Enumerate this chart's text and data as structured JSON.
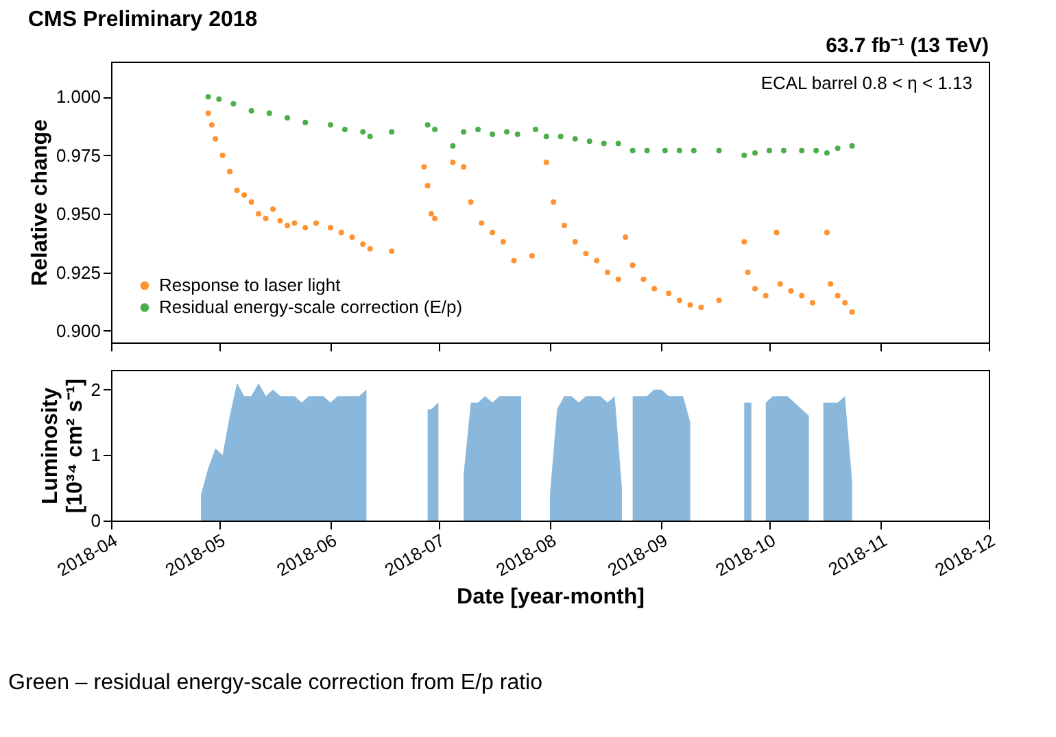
{
  "chart_data": [
    {
      "type": "scatter",
      "title": "CMS Preliminary 2018",
      "ylabel": "Relative change",
      "annotations": [
        "63.7 fb⁻¹ (13 TeV)",
        "ECAL barrel 0.8 < η < 1.13"
      ],
      "xlim": [
        "2018-04",
        "2018-12"
      ],
      "xticks": [
        "2018-04",
        "2018-05",
        "2018-06",
        "2018-07",
        "2018-08",
        "2018-09",
        "2018-10",
        "2018-11",
        "2018-12"
      ],
      "ylim": [
        0.895,
        1.015
      ],
      "yticks": [
        {
          "value": 0.9,
          "label": "0.900"
        },
        {
          "value": 0.925,
          "label": "0.925"
        },
        {
          "value": 0.95,
          "label": "0.950"
        },
        {
          "value": 0.975,
          "label": "0.975"
        },
        {
          "value": 1.0,
          "label": "1.000"
        }
      ],
      "tick_labels": "y",
      "marker": "circle",
      "grid": false,
      "legend": "bottom left",
      "series": [
        {
          "name": "Response to laser light",
          "color": "#ff7f0e",
          "x": [
            "2018-04-28",
            "2018-04-29",
            "2018-04-30",
            "2018-05-02",
            "2018-05-04",
            "2018-05-06",
            "2018-05-08",
            "2018-05-10",
            "2018-05-12",
            "2018-05-14",
            "2018-05-16",
            "2018-05-18",
            "2018-05-20",
            "2018-05-22",
            "2018-05-25",
            "2018-05-28",
            "2018-06-01",
            "2018-06-04",
            "2018-06-07",
            "2018-06-10",
            "2018-06-12",
            "2018-06-18",
            "2018-06-27",
            "2018-06-28",
            "2018-06-29",
            "2018-06-30",
            "2018-07-05",
            "2018-07-08",
            "2018-07-10",
            "2018-07-13",
            "2018-07-16",
            "2018-07-19",
            "2018-07-22",
            "2018-07-27",
            "2018-07-31",
            "2018-08-02",
            "2018-08-05",
            "2018-08-08",
            "2018-08-11",
            "2018-08-14",
            "2018-08-17",
            "2018-08-20",
            "2018-08-22",
            "2018-08-24",
            "2018-08-27",
            "2018-08-30",
            "2018-09-03",
            "2018-09-06",
            "2018-09-09",
            "2018-09-12",
            "2018-09-17",
            "2018-09-24",
            "2018-09-25",
            "2018-09-27",
            "2018-09-30",
            "2018-10-03",
            "2018-10-04",
            "2018-10-07",
            "2018-10-10",
            "2018-10-13",
            "2018-10-17",
            "2018-10-18",
            "2018-10-20",
            "2018-10-22",
            "2018-10-24"
          ],
          "values": [
            0.993,
            0.988,
            0.982,
            0.975,
            0.968,
            0.96,
            0.958,
            0.955,
            0.95,
            0.948,
            0.952,
            0.947,
            0.945,
            0.946,
            0.944,
            0.946,
            0.944,
            0.942,
            0.94,
            0.937,
            0.935,
            0.934,
            0.97,
            0.962,
            0.95,
            0.948,
            0.972,
            0.97,
            0.955,
            0.946,
            0.942,
            0.938,
            0.93,
            0.932,
            0.972,
            0.955,
            0.945,
            0.938,
            0.933,
            0.93,
            0.925,
            0.922,
            0.94,
            0.928,
            0.922,
            0.918,
            0.916,
            0.913,
            0.911,
            0.91,
            0.913,
            0.938,
            0.925,
            0.918,
            0.915,
            0.942,
            0.92,
            0.917,
            0.915,
            0.912,
            0.942,
            0.92,
            0.915,
            0.912,
            0.908
          ]
        },
        {
          "name": "Residual energy-scale correction (E/p)",
          "color": "#2ca02c",
          "x": [
            "2018-04-28",
            "2018-05-01",
            "2018-05-05",
            "2018-05-10",
            "2018-05-15",
            "2018-05-20",
            "2018-05-25",
            "2018-06-01",
            "2018-06-05",
            "2018-06-10",
            "2018-06-12",
            "2018-06-18",
            "2018-06-28",
            "2018-06-30",
            "2018-07-05",
            "2018-07-08",
            "2018-07-12",
            "2018-07-16",
            "2018-07-20",
            "2018-07-23",
            "2018-07-28",
            "2018-07-31",
            "2018-08-04",
            "2018-08-08",
            "2018-08-12",
            "2018-08-16",
            "2018-08-20",
            "2018-08-24",
            "2018-08-28",
            "2018-09-02",
            "2018-09-06",
            "2018-09-10",
            "2018-09-17",
            "2018-09-24",
            "2018-09-27",
            "2018-10-01",
            "2018-10-05",
            "2018-10-10",
            "2018-10-14",
            "2018-10-17",
            "2018-10-20",
            "2018-10-24"
          ],
          "values": [
            1.0,
            0.999,
            0.997,
            0.994,
            0.993,
            0.991,
            0.989,
            0.988,
            0.986,
            0.985,
            0.983,
            0.985,
            0.988,
            0.986,
            0.979,
            0.985,
            0.986,
            0.984,
            0.985,
            0.984,
            0.986,
            0.983,
            0.983,
            0.982,
            0.981,
            0.98,
            0.98,
            0.977,
            0.977,
            0.977,
            0.977,
            0.977,
            0.977,
            0.975,
            0.976,
            0.977,
            0.977,
            0.977,
            0.977,
            0.976,
            0.978,
            0.979
          ]
        }
      ]
    },
    {
      "type": "area",
      "xlabel": "Date [year-month]",
      "ylabel": "Luminosity\n[10³⁴ cm² s⁻¹]",
      "annotations": [
        "Green – residual energy-scale correction from E/p ratio"
      ],
      "xlim": [
        "2018-04",
        "2018-12"
      ],
      "xticks": [
        "2018-04",
        "2018-05",
        "2018-06",
        "2018-07",
        "2018-08",
        "2018-09",
        "2018-10",
        "2018-11",
        "2018-12"
      ],
      "ylim": [
        0,
        2.3
      ],
      "yticks": [
        0,
        1,
        2
      ],
      "grid": false,
      "legend": false,
      "series": [
        {
          "color": "#8ab8dc",
          "x": [
            "2018-04-26",
            "2018-04-28",
            "2018-04-30",
            "2018-05-02",
            "2018-05-04",
            "2018-05-06",
            "2018-05-08",
            "2018-05-10",
            "2018-05-12",
            "2018-05-14",
            "2018-05-16",
            "2018-05-18",
            "2018-05-20",
            "2018-05-22",
            "2018-05-24",
            "2018-05-26",
            "2018-05-28",
            "2018-05-30",
            "2018-06-01",
            "2018-06-03",
            "2018-06-05",
            "2018-06-07",
            "2018-06-09",
            "2018-06-11",
            "2018-06-13",
            "2018-06-28",
            "2018-06-29",
            "2018-07-01",
            "2018-07-03",
            "2018-07-08",
            "2018-07-10",
            "2018-07-12",
            "2018-07-14",
            "2018-07-16",
            "2018-07-18",
            "2018-07-20",
            "2018-07-22",
            "2018-07-24",
            "2018-07-26",
            "2018-08-01",
            "2018-08-03",
            "2018-08-05",
            "2018-08-07",
            "2018-08-09",
            "2018-08-11",
            "2018-08-13",
            "2018-08-15",
            "2018-08-17",
            "2018-08-19",
            "2018-08-21",
            "2018-08-22",
            "2018-08-24",
            "2018-08-26",
            "2018-08-28",
            "2018-08-30",
            "2018-09-01",
            "2018-09-03",
            "2018-09-05",
            "2018-09-07",
            "2018-09-09",
            "2018-09-11",
            "2018-09-24",
            "2018-09-26",
            "2018-09-28",
            "2018-09-30",
            "2018-10-02",
            "2018-10-04",
            "2018-10-06",
            "2018-10-08",
            "2018-10-10",
            "2018-10-12",
            "2018-10-14",
            "2018-10-16",
            "2018-10-18",
            "2018-10-20",
            "2018-10-22",
            "2018-10-24"
          ],
          "values": [
            0.4,
            0.8,
            1.1,
            1.0,
            1.6,
            2.1,
            1.9,
            1.9,
            2.1,
            1.9,
            2.0,
            1.9,
            1.9,
            1.9,
            1.8,
            1.9,
            1.9,
            1.9,
            1.8,
            1.9,
            1.9,
            1.9,
            1.9,
            2.0,
            null,
            1.7,
            1.7,
            1.8,
            null,
            0.7,
            1.8,
            1.8,
            1.9,
            1.8,
            1.9,
            1.9,
            1.9,
            1.9,
            null,
            0.4,
            1.7,
            1.9,
            1.9,
            1.8,
            1.9,
            1.9,
            1.9,
            1.8,
            1.9,
            0.5,
            null,
            1.9,
            1.9,
            1.9,
            2.0,
            2.0,
            1.9,
            1.9,
            1.9,
            1.5,
            null,
            1.8,
            1.8,
            null,
            1.8,
            1.9,
            1.9,
            1.9,
            1.8,
            1.7,
            1.6,
            null,
            1.8,
            1.8,
            1.8,
            1.9,
            0.6
          ]
        }
      ]
    }
  ]
}
